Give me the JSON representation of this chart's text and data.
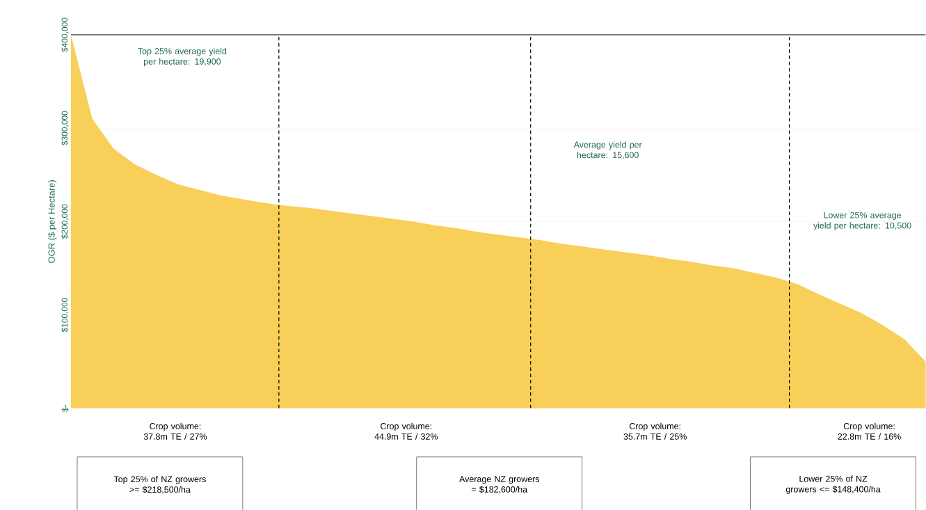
{
  "chart_data": {
    "type": "area",
    "ylabel": "OGR ($ per Hectare)",
    "categories": [
      null,
      null,
      null,
      null,
      null,
      null,
      null,
      null,
      null,
      null,
      null,
      null,
      null,
      null,
      null,
      null,
      null,
      null,
      null,
      null,
      null,
      null,
      null,
      null,
      null,
      null,
      null,
      null,
      null,
      null,
      null,
      null,
      null,
      null,
      null,
      null,
      null,
      null,
      null,
      null,
      null
    ],
    "values": [
      400000,
      310000,
      278000,
      261000,
      250000,
      240000,
      234000,
      228000,
      224000,
      220000,
      217000,
      215000,
      212000,
      209000,
      206000,
      203000,
      200000,
      196000,
      193000,
      189000,
      186000,
      183000,
      180000,
      176000,
      173000,
      170000,
      167000,
      164000,
      160000,
      157000,
      153000,
      150000,
      145000,
      140000,
      133000,
      122000,
      112000,
      102000,
      89000,
      74000,
      50000
    ],
    "color": "#f8cf58",
    "ylim": [
      0,
      400000
    ],
    "yticks": [
      {
        "value": 0,
        "label": "$-"
      },
      {
        "value": 100000,
        "label": "$100,000"
      },
      {
        "value": 200000,
        "label": "$200,000"
      },
      {
        "value": 300000,
        "label": "$300,000"
      },
      {
        "value": 400000,
        "label": "$400,000"
      }
    ],
    "grid": "y",
    "annotations": [
      "Top 25% average yield per hectare: 19,900",
      "Average yield per hectare: 15,600",
      "Lower 25% average yield per hectare: 10,500",
      "Crop volume: 37.8m TE / 27%",
      "Crop volume: 44.9m TE / 32%",
      "Crop volume: 35.7m TE / 25%",
      "Crop volume: 22.8m TE / 16%",
      "Top 25% of NZ growers >= $218,500/ha",
      "Average NZ growers = $182,600/ha",
      "Lower 25% of NZ growers <= $148,400/ha"
    ]
  }
}
